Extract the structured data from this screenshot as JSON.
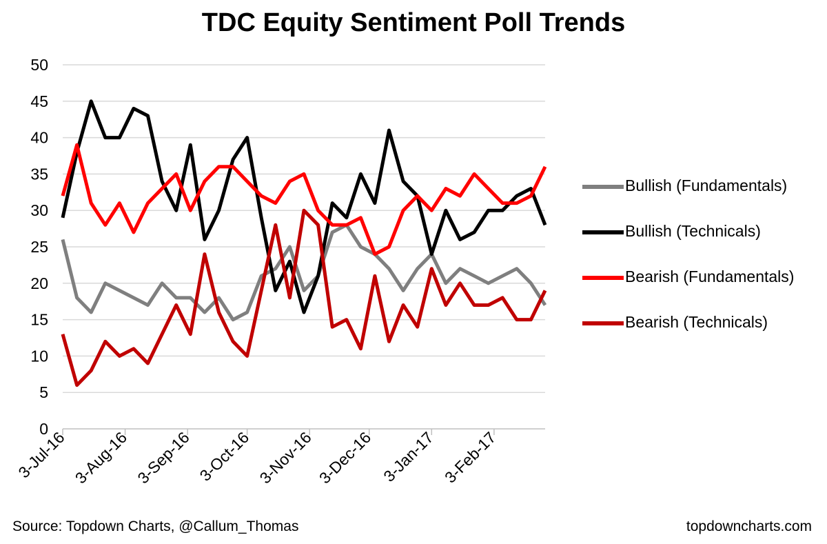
{
  "title": "TDC Equity Sentiment Poll Trends",
  "source": "Source: Topdown Charts, @Callum_Thomas",
  "website": "topdowncharts.com",
  "chart_data": {
    "type": "line",
    "title": "TDC Equity Sentiment Poll Trends",
    "xlabel": "",
    "ylabel": "",
    "ylim": [
      0,
      50
    ],
    "yticks": [
      0,
      5,
      10,
      15,
      20,
      25,
      30,
      35,
      40,
      45,
      50
    ],
    "x_tick_labels": [
      "3-Jul-16",
      "3-Aug-16",
      "3-Sep-16",
      "3-Oct-16",
      "3-Nov-16",
      "3-Dec-16",
      "3-Jan-17",
      "3-Feb-17"
    ],
    "x_tick_index": [
      0,
      4.4,
      8.8,
      13,
      17.4,
      21.6,
      26,
      30.4
    ],
    "grid": true,
    "legend_position": "right",
    "series": [
      {
        "name": "Bullish (Fundamentals)",
        "color": "#7f7f7f",
        "values": [
          26,
          18,
          16,
          20,
          19,
          18,
          17,
          20,
          18,
          18,
          16,
          18,
          15,
          16,
          21,
          22,
          25,
          19,
          21,
          27,
          28,
          25,
          24,
          22,
          19,
          22,
          24,
          20,
          22,
          21,
          20,
          21,
          22,
          20,
          17
        ]
      },
      {
        "name": "Bullish (Technicals)",
        "color": "#000000",
        "values": [
          29,
          38,
          45,
          40,
          40,
          44,
          43,
          34,
          30,
          39,
          26,
          30,
          37,
          40,
          29,
          19,
          23,
          16,
          21,
          31,
          29,
          35,
          31,
          41,
          34,
          32,
          24,
          30,
          26,
          27,
          30,
          30,
          32,
          33,
          28
        ]
      },
      {
        "name": "Bearish (Fundamentals)",
        "color": "#ff0000",
        "values": [
          32,
          39,
          31,
          28,
          31,
          27,
          31,
          33,
          35,
          30,
          34,
          36,
          36,
          34,
          32,
          31,
          34,
          35,
          30,
          28,
          28,
          29,
          24,
          25,
          30,
          32,
          30,
          33,
          32,
          35,
          33,
          31,
          31,
          32,
          36
        ]
      },
      {
        "name": "Bearish (Technicals)",
        "color": "#c00000",
        "values": [
          13,
          6,
          8,
          12,
          10,
          11,
          9,
          13,
          17,
          13,
          24,
          16,
          12,
          10,
          19,
          28,
          18,
          30,
          28,
          14,
          15,
          11,
          21,
          12,
          17,
          14,
          22,
          17,
          20,
          17,
          17,
          18,
          15,
          15,
          19
        ]
      }
    ]
  }
}
